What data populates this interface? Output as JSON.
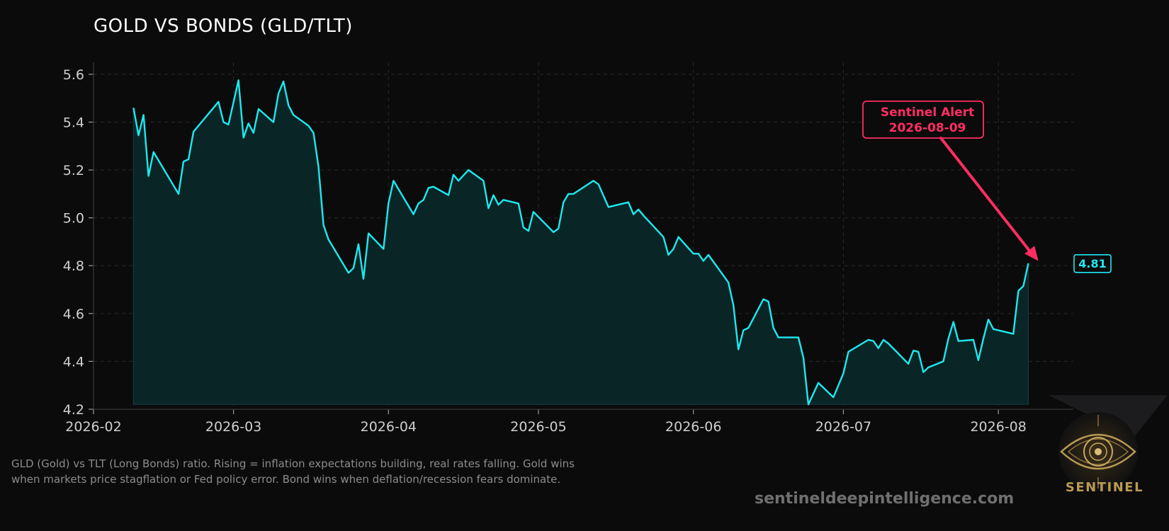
{
  "title": "GOLD VS BONDS (GLD/TLT)",
  "caption": "GLD (Gold) vs TLT (Long Bonds) ratio. Rising = inflation expectations building, real rates falling. Gold wins when markets price stagflation or Fed policy error. Bond wins when deflation/recession fears dominate.",
  "site": "sentineldeepintelligence.com",
  "logo_text": "SENTINEL",
  "colors": {
    "background": "#0b0b0b",
    "line": "#1de9f0",
    "fill": "#0a2526",
    "alert": "#ff2e63",
    "grid": "#2a2a2a"
  },
  "chart_data": {
    "type": "area",
    "title": "GOLD VS BONDS (GLD/TLT)",
    "xlabel": "",
    "ylabel": "",
    "ylim": [
      4.2,
      5.65
    ],
    "yticks": [
      "4.2",
      "4.4",
      "4.6",
      "4.8",
      "5.0",
      "5.2",
      "5.4",
      "5.6"
    ],
    "ytick_values": [
      4.2,
      4.4,
      4.6,
      4.8,
      5.0,
      5.2,
      5.4,
      5.6
    ],
    "xticks": [
      "2026-02",
      "2026-03",
      "2026-04",
      "2026-05",
      "2026-06",
      "2026-07",
      "2026-08"
    ],
    "xtick_dates": [
      "2026-02-01",
      "2026-03-01",
      "2026-04-01",
      "2026-05-01",
      "2026-06-01",
      "2026-07-01",
      "2026-08-01"
    ],
    "xlim": [
      "2026-02-01",
      "2026-08-16"
    ],
    "grid": true,
    "series": [
      {
        "x": [
          "2026-02-09",
          "2026-02-10",
          "2026-02-11",
          "2026-02-12",
          "2026-02-13",
          "2026-02-18",
          "2026-02-19",
          "2026-02-20",
          "2026-02-21",
          "2026-02-26",
          "2026-02-27",
          "2026-02-28",
          "2026-03-02",
          "2026-03-03",
          "2026-03-04",
          "2026-03-05",
          "2026-03-06",
          "2026-03-09",
          "2026-03-10",
          "2026-03-11",
          "2026-03-12",
          "2026-03-13",
          "2026-03-16",
          "2026-03-17",
          "2026-03-18",
          "2026-03-19",
          "2026-03-20",
          "2026-03-24",
          "2026-03-25",
          "2026-03-26",
          "2026-03-27",
          "2026-03-28",
          "2026-03-31",
          "2026-04-01",
          "2026-04-02",
          "2026-04-06",
          "2026-04-07",
          "2026-04-08",
          "2026-04-09",
          "2026-04-10",
          "2026-04-13",
          "2026-04-14",
          "2026-04-15",
          "2026-04-17",
          "2026-04-20",
          "2026-04-21",
          "2026-04-22",
          "2026-04-23",
          "2026-04-24",
          "2026-04-27",
          "2026-04-28",
          "2026-04-29",
          "2026-04-30",
          "2026-05-04",
          "2026-05-05",
          "2026-05-06",
          "2026-05-07",
          "2026-05-08",
          "2026-05-12",
          "2026-05-13",
          "2026-05-15",
          "2026-05-19",
          "2026-05-20",
          "2026-05-21",
          "2026-05-22",
          "2026-05-26",
          "2026-05-27",
          "2026-05-28",
          "2026-05-29",
          "2026-06-01",
          "2026-06-02",
          "2026-06-03",
          "2026-06-04",
          "2026-06-08",
          "2026-06-09",
          "2026-06-10",
          "2026-06-11",
          "2026-06-12",
          "2026-06-15",
          "2026-06-16",
          "2026-06-17",
          "2026-06-18",
          "2026-06-22",
          "2026-06-23",
          "2026-06-24",
          "2026-06-26",
          "2026-06-29",
          "2026-06-30",
          "2026-07-01",
          "2026-07-02",
          "2026-07-06",
          "2026-07-07",
          "2026-07-08",
          "2026-07-09",
          "2026-07-10",
          "2026-07-14",
          "2026-07-15",
          "2026-07-16",
          "2026-07-17",
          "2026-07-18",
          "2026-07-21",
          "2026-07-22",
          "2026-07-23",
          "2026-07-24",
          "2026-07-27",
          "2026-07-28",
          "2026-07-29",
          "2026-07-30",
          "2026-07-31",
          "2026-08-04",
          "2026-08-05",
          "2026-08-06",
          "2026-08-07"
        ],
        "y": [
          5.46,
          5.345,
          5.43,
          5.175,
          5.275,
          5.1,
          5.235,
          5.245,
          5.36,
          5.485,
          5.4,
          5.39,
          5.575,
          5.335,
          5.395,
          5.355,
          5.455,
          5.4,
          5.52,
          5.57,
          5.47,
          5.43,
          5.385,
          5.355,
          5.215,
          4.97,
          4.91,
          4.77,
          4.79,
          4.89,
          4.745,
          4.935,
          4.87,
          5.06,
          5.155,
          5.015,
          5.06,
          5.075,
          5.125,
          5.13,
          5.095,
          5.18,
          5.155,
          5.2,
          5.155,
          5.04,
          5.095,
          5.055,
          5.075,
          5.06,
          4.96,
          4.945,
          5.025,
          4.94,
          4.955,
          5.065,
          5.1,
          5.1,
          5.155,
          5.14,
          5.045,
          5.065,
          5.015,
          5.035,
          5.01,
          4.92,
          4.845,
          4.87,
          4.92,
          4.85,
          4.85,
          4.82,
          4.845,
          4.73,
          4.635,
          4.45,
          4.53,
          4.54,
          4.66,
          4.65,
          4.54,
          4.5,
          4.5,
          4.415,
          4.22,
          4.31,
          4.25,
          4.3,
          4.35,
          4.44,
          4.49,
          4.485,
          4.455,
          4.49,
          4.475,
          4.39,
          4.445,
          4.44,
          4.355,
          4.375,
          4.4,
          4.495,
          4.565,
          4.485,
          4.49,
          4.405,
          4.495,
          4.575,
          4.535,
          4.515,
          4.695,
          4.715,
          4.81
        ]
      }
    ],
    "annotations": [
      {
        "text": "Sentinel Alert\n2026-08-09",
        "target_date": "2026-08-09",
        "target_value": 4.82
      }
    ],
    "last_value_label": "4.81"
  }
}
